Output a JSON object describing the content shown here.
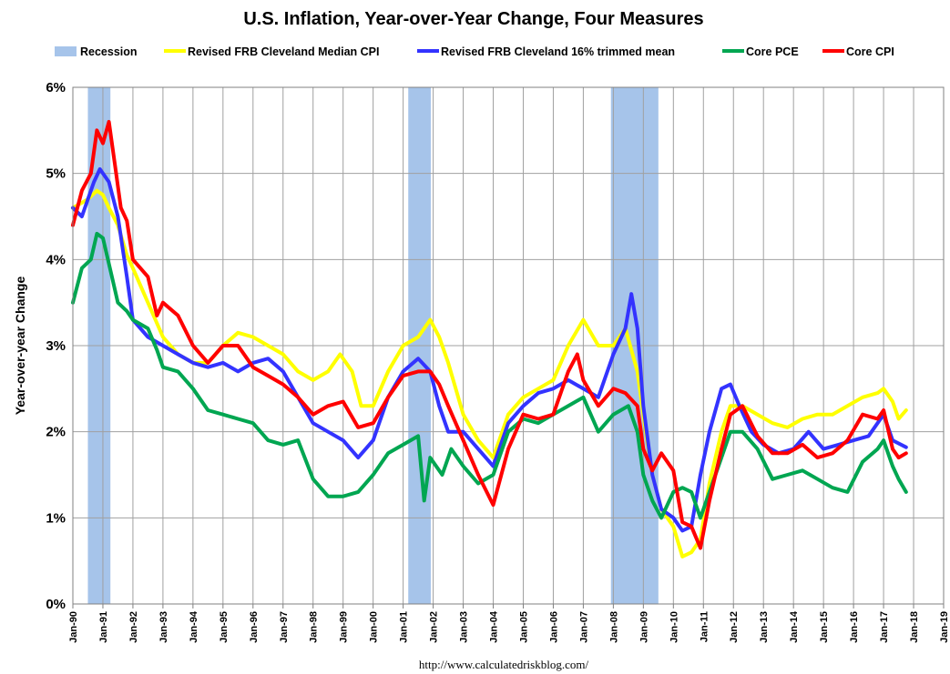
{
  "chart_data": {
    "type": "line",
    "title": "U.S. Inflation, Year-over-Year Change, Four Measures",
    "ylabel": "Year-over-year Change",
    "xlabel": "",
    "source": "http://www.calculatedriskblog.com/",
    "x_range": [
      1990.0,
      2019.0
    ],
    "ylim": [
      0,
      6
    ],
    "y_ticks": [
      0,
      1,
      2,
      3,
      4,
      5,
      6
    ],
    "y_tick_labels": [
      "0%",
      "1%",
      "2%",
      "3%",
      "4%",
      "5%",
      "6%"
    ],
    "x_tick_labels": [
      "Jan-90",
      "Jan-91",
      "Jan-92",
      "Jan-93",
      "Jan-94",
      "Jan-95",
      "Jan-96",
      "Jan-97",
      "Jan-98",
      "Jan-99",
      "Jan-00",
      "Jan-01",
      "Jan-02",
      "Jan-03",
      "Jan-04",
      "Jan-05",
      "Jan-06",
      "Jan-07",
      "Jan-08",
      "Jan-09",
      "Jan-10",
      "Jan-11",
      "Jan-12",
      "Jan-13",
      "Jan-14",
      "Jan-15",
      "Jan-16",
      "Jan-17",
      "Jan-18",
      "Jan-19"
    ],
    "grid": true,
    "legend_position": "top",
    "recessions": [
      {
        "start": 1990.5,
        "end": 1991.25
      },
      {
        "start": 2001.17,
        "end": 2001.92
      },
      {
        "start": 2007.92,
        "end": 2009.5
      }
    ],
    "recession_label": "Recession",
    "recession_color": "#a6c4ea",
    "series": [
      {
        "name": "Revised FRB Cleveland Median CPI",
        "color": "#ffff00",
        "points": [
          [
            1990.0,
            4.6
          ],
          [
            1990.5,
            4.7
          ],
          [
            1990.8,
            4.8
          ],
          [
            1991.0,
            4.75
          ],
          [
            1991.2,
            4.6
          ],
          [
            1991.5,
            4.4
          ],
          [
            1991.8,
            4.05
          ],
          [
            1992.0,
            3.9
          ],
          [
            1992.5,
            3.5
          ],
          [
            1993.0,
            3.1
          ],
          [
            1993.5,
            2.9
          ],
          [
            1994.0,
            2.8
          ],
          [
            1994.5,
            2.8
          ],
          [
            1995.0,
            3.0
          ],
          [
            1995.5,
            3.15
          ],
          [
            1996.0,
            3.1
          ],
          [
            1996.5,
            3.0
          ],
          [
            1997.0,
            2.9
          ],
          [
            1997.5,
            2.7
          ],
          [
            1998.0,
            2.6
          ],
          [
            1998.5,
            2.7
          ],
          [
            1998.9,
            2.9
          ],
          [
            1999.3,
            2.7
          ],
          [
            1999.6,
            2.3
          ],
          [
            2000.0,
            2.3
          ],
          [
            2000.5,
            2.7
          ],
          [
            2001.0,
            3.0
          ],
          [
            2001.5,
            3.1
          ],
          [
            2001.9,
            3.3
          ],
          [
            2002.2,
            3.1
          ],
          [
            2002.5,
            2.8
          ],
          [
            2003.0,
            2.2
          ],
          [
            2003.5,
            1.9
          ],
          [
            2004.0,
            1.7
          ],
          [
            2004.5,
            2.2
          ],
          [
            2005.0,
            2.4
          ],
          [
            2005.5,
            2.5
          ],
          [
            2006.0,
            2.6
          ],
          [
            2006.5,
            3.0
          ],
          [
            2007.0,
            3.3
          ],
          [
            2007.5,
            3.0
          ],
          [
            2008.0,
            3.0
          ],
          [
            2008.4,
            3.2
          ],
          [
            2008.8,
            2.7
          ],
          [
            2009.0,
            2.2
          ],
          [
            2009.3,
            1.5
          ],
          [
            2009.6,
            1.1
          ],
          [
            2010.0,
            0.9
          ],
          [
            2010.3,
            0.55
          ],
          [
            2010.6,
            0.6
          ],
          [
            2010.9,
            0.75
          ],
          [
            2011.2,
            1.4
          ],
          [
            2011.6,
            2.0
          ],
          [
            2011.9,
            2.3
          ],
          [
            2012.3,
            2.3
          ],
          [
            2012.8,
            2.2
          ],
          [
            2013.3,
            2.1
          ],
          [
            2013.8,
            2.05
          ],
          [
            2014.3,
            2.15
          ],
          [
            2014.8,
            2.2
          ],
          [
            2015.3,
            2.2
          ],
          [
            2015.8,
            2.3
          ],
          [
            2016.3,
            2.4
          ],
          [
            2016.8,
            2.45
          ],
          [
            2017.0,
            2.5
          ],
          [
            2017.3,
            2.35
          ],
          [
            2017.5,
            2.15
          ],
          [
            2017.75,
            2.25
          ]
        ]
      },
      {
        "name": "Revised FRB Cleveland 16% trimmed mean",
        "color": "#3333ff",
        "points": [
          [
            1990.0,
            4.6
          ],
          [
            1990.3,
            4.5
          ],
          [
            1990.7,
            4.9
          ],
          [
            1990.9,
            5.05
          ],
          [
            1991.2,
            4.9
          ],
          [
            1991.5,
            4.5
          ],
          [
            1991.8,
            3.8
          ],
          [
            1992.0,
            3.3
          ],
          [
            1992.5,
            3.1
          ],
          [
            1993.0,
            3.0
          ],
          [
            1993.5,
            2.9
          ],
          [
            1994.0,
            2.8
          ],
          [
            1994.5,
            2.75
          ],
          [
            1995.0,
            2.8
          ],
          [
            1995.5,
            2.7
          ],
          [
            1996.0,
            2.8
          ],
          [
            1996.5,
            2.85
          ],
          [
            1997.0,
            2.7
          ],
          [
            1997.5,
            2.4
          ],
          [
            1998.0,
            2.1
          ],
          [
            1998.5,
            2.0
          ],
          [
            1999.0,
            1.9
          ],
          [
            1999.5,
            1.7
          ],
          [
            2000.0,
            1.9
          ],
          [
            2000.5,
            2.4
          ],
          [
            2001.0,
            2.7
          ],
          [
            2001.5,
            2.85
          ],
          [
            2001.9,
            2.7
          ],
          [
            2002.2,
            2.3
          ],
          [
            2002.5,
            2.0
          ],
          [
            2003.0,
            2.0
          ],
          [
            2003.5,
            1.8
          ],
          [
            2004.0,
            1.6
          ],
          [
            2004.5,
            2.1
          ],
          [
            2005.0,
            2.3
          ],
          [
            2005.5,
            2.45
          ],
          [
            2006.0,
            2.5
          ],
          [
            2006.5,
            2.6
          ],
          [
            2007.0,
            2.5
          ],
          [
            2007.5,
            2.4
          ],
          [
            2008.0,
            2.9
          ],
          [
            2008.4,
            3.2
          ],
          [
            2008.6,
            3.6
          ],
          [
            2008.8,
            3.2
          ],
          [
            2009.0,
            2.3
          ],
          [
            2009.3,
            1.5
          ],
          [
            2009.6,
            1.1
          ],
          [
            2010.0,
            1.0
          ],
          [
            2010.3,
            0.85
          ],
          [
            2010.6,
            0.9
          ],
          [
            2010.9,
            1.5
          ],
          [
            2011.2,
            2.0
          ],
          [
            2011.6,
            2.5
          ],
          [
            2011.9,
            2.55
          ],
          [
            2012.2,
            2.3
          ],
          [
            2012.6,
            2.0
          ],
          [
            2013.0,
            1.85
          ],
          [
            2013.5,
            1.75
          ],
          [
            2014.0,
            1.8
          ],
          [
            2014.5,
            2.0
          ],
          [
            2015.0,
            1.8
          ],
          [
            2015.5,
            1.85
          ],
          [
            2016.0,
            1.9
          ],
          [
            2016.5,
            1.95
          ],
          [
            2017.0,
            2.2
          ],
          [
            2017.3,
            1.9
          ],
          [
            2017.75,
            1.82
          ]
        ]
      },
      {
        "name": "Core PCE",
        "color": "#00a651",
        "points": [
          [
            1990.0,
            3.5
          ],
          [
            1990.3,
            3.9
          ],
          [
            1990.6,
            4.0
          ],
          [
            1990.8,
            4.3
          ],
          [
            1991.0,
            4.25
          ],
          [
            1991.3,
            3.8
          ],
          [
            1991.5,
            3.5
          ],
          [
            1991.8,
            3.4
          ],
          [
            1992.0,
            3.3
          ],
          [
            1992.5,
            3.2
          ],
          [
            1992.8,
            2.95
          ],
          [
            1993.0,
            2.75
          ],
          [
            1993.5,
            2.7
          ],
          [
            1994.0,
            2.5
          ],
          [
            1994.5,
            2.25
          ],
          [
            1995.0,
            2.2
          ],
          [
            1995.5,
            2.15
          ],
          [
            1996.0,
            2.1
          ],
          [
            1996.5,
            1.9
          ],
          [
            1997.0,
            1.85
          ],
          [
            1997.5,
            1.9
          ],
          [
            1998.0,
            1.45
          ],
          [
            1998.5,
            1.25
          ],
          [
            1999.0,
            1.25
          ],
          [
            1999.5,
            1.3
          ],
          [
            2000.0,
            1.5
          ],
          [
            2000.5,
            1.75
          ],
          [
            2001.0,
            1.85
          ],
          [
            2001.5,
            1.95
          ],
          [
            2001.7,
            1.2
          ],
          [
            2001.9,
            1.7
          ],
          [
            2002.3,
            1.5
          ],
          [
            2002.6,
            1.8
          ],
          [
            2003.0,
            1.6
          ],
          [
            2003.5,
            1.4
          ],
          [
            2004.0,
            1.5
          ],
          [
            2004.5,
            2.0
          ],
          [
            2005.0,
            2.15
          ],
          [
            2005.5,
            2.1
          ],
          [
            2006.0,
            2.2
          ],
          [
            2006.5,
            2.3
          ],
          [
            2007.0,
            2.4
          ],
          [
            2007.5,
            2.0
          ],
          [
            2008.0,
            2.2
          ],
          [
            2008.5,
            2.3
          ],
          [
            2008.8,
            2.0
          ],
          [
            2009.0,
            1.5
          ],
          [
            2009.3,
            1.2
          ],
          [
            2009.6,
            1.0
          ],
          [
            2010.0,
            1.3
          ],
          [
            2010.3,
            1.35
          ],
          [
            2010.6,
            1.3
          ],
          [
            2010.9,
            1.0
          ],
          [
            2011.2,
            1.3
          ],
          [
            2011.6,
            1.7
          ],
          [
            2011.9,
            2.0
          ],
          [
            2012.3,
            2.0
          ],
          [
            2012.8,
            1.8
          ],
          [
            2013.3,
            1.45
          ],
          [
            2013.8,
            1.5
          ],
          [
            2014.3,
            1.55
          ],
          [
            2014.8,
            1.45
          ],
          [
            2015.3,
            1.35
          ],
          [
            2015.8,
            1.3
          ],
          [
            2016.3,
            1.65
          ],
          [
            2016.8,
            1.8
          ],
          [
            2017.0,
            1.9
          ],
          [
            2017.3,
            1.6
          ],
          [
            2017.5,
            1.45
          ],
          [
            2017.75,
            1.3
          ]
        ]
      },
      {
        "name": "Core CPI",
        "color": "#ff0000",
        "points": [
          [
            1990.0,
            4.4
          ],
          [
            1990.3,
            4.8
          ],
          [
            1990.6,
            5.0
          ],
          [
            1990.8,
            5.5
          ],
          [
            1991.0,
            5.35
          ],
          [
            1991.2,
            5.6
          ],
          [
            1991.4,
            5.1
          ],
          [
            1991.6,
            4.6
          ],
          [
            1991.8,
            4.45
          ],
          [
            1992.0,
            4.0
          ],
          [
            1992.5,
            3.8
          ],
          [
            1992.8,
            3.35
          ],
          [
            1993.0,
            3.5
          ],
          [
            1993.5,
            3.35
          ],
          [
            1994.0,
            3.0
          ],
          [
            1994.5,
            2.8
          ],
          [
            1995.0,
            3.0
          ],
          [
            1995.5,
            3.0
          ],
          [
            1996.0,
            2.75
          ],
          [
            1996.5,
            2.65
          ],
          [
            1997.0,
            2.55
          ],
          [
            1997.5,
            2.4
          ],
          [
            1998.0,
            2.2
          ],
          [
            1998.5,
            2.3
          ],
          [
            1999.0,
            2.35
          ],
          [
            1999.5,
            2.05
          ],
          [
            2000.0,
            2.1
          ],
          [
            2000.5,
            2.4
          ],
          [
            2001.0,
            2.65
          ],
          [
            2001.5,
            2.7
          ],
          [
            2001.9,
            2.7
          ],
          [
            2002.2,
            2.55
          ],
          [
            2002.5,
            2.3
          ],
          [
            2003.0,
            1.9
          ],
          [
            2003.5,
            1.5
          ],
          [
            2004.0,
            1.15
          ],
          [
            2004.5,
            1.8
          ],
          [
            2005.0,
            2.2
          ],
          [
            2005.5,
            2.15
          ],
          [
            2006.0,
            2.2
          ],
          [
            2006.5,
            2.7
          ],
          [
            2006.8,
            2.9
          ],
          [
            2007.0,
            2.6
          ],
          [
            2007.5,
            2.3
          ],
          [
            2008.0,
            2.5
          ],
          [
            2008.4,
            2.45
          ],
          [
            2008.8,
            2.3
          ],
          [
            2009.0,
            1.8
          ],
          [
            2009.3,
            1.55
          ],
          [
            2009.6,
            1.75
          ],
          [
            2010.0,
            1.55
          ],
          [
            2010.3,
            0.95
          ],
          [
            2010.6,
            0.9
          ],
          [
            2010.9,
            0.65
          ],
          [
            2011.2,
            1.2
          ],
          [
            2011.6,
            1.8
          ],
          [
            2011.9,
            2.2
          ],
          [
            2012.3,
            2.3
          ],
          [
            2012.8,
            1.95
          ],
          [
            2013.3,
            1.75
          ],
          [
            2013.8,
            1.75
          ],
          [
            2014.3,
            1.85
          ],
          [
            2014.8,
            1.7
          ],
          [
            2015.3,
            1.75
          ],
          [
            2015.8,
            1.9
          ],
          [
            2016.3,
            2.2
          ],
          [
            2016.8,
            2.15
          ],
          [
            2017.0,
            2.25
          ],
          [
            2017.3,
            1.8
          ],
          [
            2017.5,
            1.7
          ],
          [
            2017.75,
            1.75
          ]
        ]
      }
    ]
  }
}
